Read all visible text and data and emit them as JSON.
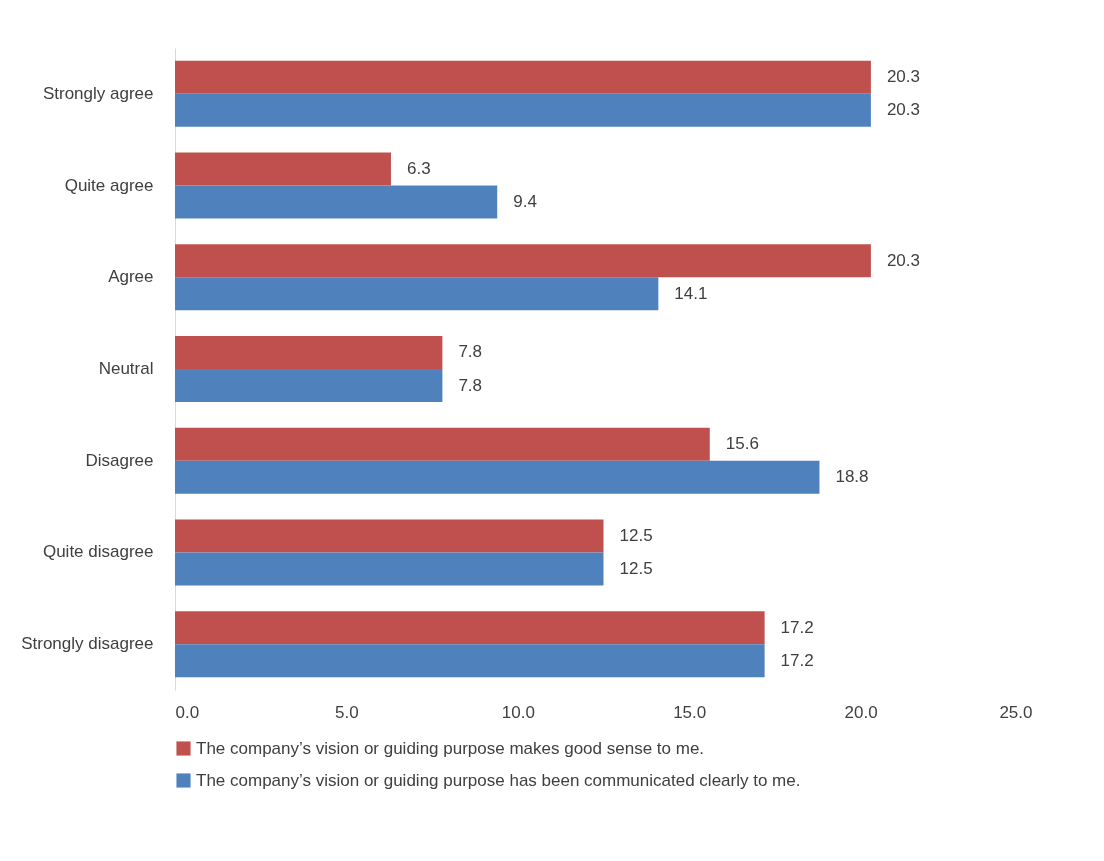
{
  "chart_data": {
    "type": "bar",
    "orientation": "horizontal",
    "categories": [
      "Strongly agree",
      "Quite agree",
      "Agree",
      "Neutral",
      "Disagree",
      "Quite disagree",
      "Strongly disagree"
    ],
    "series": [
      {
        "name": "The company’s vision or guiding purpose makes good sense to me.",
        "color": "#c0504d",
        "values": [
          20.3,
          6.3,
          20.3,
          7.8,
          15.6,
          12.5,
          17.2
        ]
      },
      {
        "name": "The company’s vision or guiding purpose has been communicated clearly to me.",
        "color": "#4f81bd",
        "values": [
          20.3,
          9.4,
          14.1,
          7.8,
          18.8,
          12.5,
          17.2
        ]
      }
    ],
    "xlim": [
      0,
      25
    ],
    "xticks": [
      {
        "value": 0,
        "label": "0.0"
      },
      {
        "value": 5,
        "label": "5.0"
      },
      {
        "value": 10,
        "label": "10.0"
      },
      {
        "value": 15,
        "label": "15.0"
      },
      {
        "value": 20,
        "label": "20.0"
      },
      {
        "value": 25,
        "label": "25.0"
      }
    ],
    "grid": false,
    "legend": "bottom",
    "data_labels": true
  }
}
